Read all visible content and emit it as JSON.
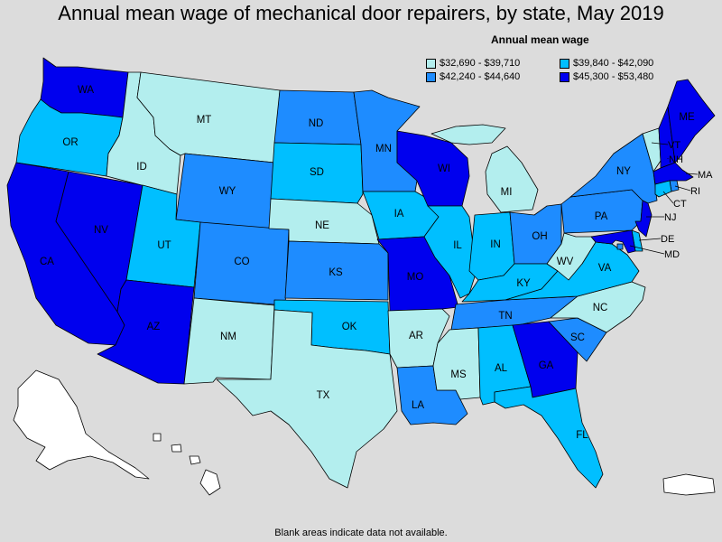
{
  "title": "Annual mean wage of mechanical door repairers, by state, May 2019",
  "legend": {
    "title": "Annual mean wage",
    "items": [
      {
        "label": "$32,690 - $39,710",
        "color": "#b3eeee"
      },
      {
        "label": "$39,840 - $42,090",
        "color": "#00bfff"
      },
      {
        "label": "$42,240 - $44,640",
        "color": "#1e8cff"
      },
      {
        "label": "$45,300 - $53,480",
        "color": "#0000ee"
      }
    ]
  },
  "footnote": "Blank areas indicate data not available.",
  "colors": {
    "tier1": "#b3eeee",
    "tier2": "#00bfff",
    "tier3": "#1e8cff",
    "tier4": "#0000ee",
    "no_data": "#ffffff",
    "background": "#dcdcdc"
  },
  "states": [
    {
      "abbr": "WA",
      "tier": 4
    },
    {
      "abbr": "OR",
      "tier": 2
    },
    {
      "abbr": "CA",
      "tier": 4
    },
    {
      "abbr": "NV",
      "tier": 4
    },
    {
      "abbr": "ID",
      "tier": 1
    },
    {
      "abbr": "MT",
      "tier": 1
    },
    {
      "abbr": "WY",
      "tier": 3
    },
    {
      "abbr": "UT",
      "tier": 2
    },
    {
      "abbr": "AZ",
      "tier": 4
    },
    {
      "abbr": "CO",
      "tier": 3
    },
    {
      "abbr": "NM",
      "tier": 1
    },
    {
      "abbr": "ND",
      "tier": 3
    },
    {
      "abbr": "SD",
      "tier": 2
    },
    {
      "abbr": "NE",
      "tier": 1
    },
    {
      "abbr": "KS",
      "tier": 3
    },
    {
      "abbr": "OK",
      "tier": 2
    },
    {
      "abbr": "TX",
      "tier": 1
    },
    {
      "abbr": "MN",
      "tier": 3
    },
    {
      "abbr": "IA",
      "tier": 2
    },
    {
      "abbr": "MO",
      "tier": 4
    },
    {
      "abbr": "AR",
      "tier": 1
    },
    {
      "abbr": "LA",
      "tier": 3
    },
    {
      "abbr": "WI",
      "tier": 4
    },
    {
      "abbr": "IL",
      "tier": 2
    },
    {
      "abbr": "MI",
      "tier": 1
    },
    {
      "abbr": "IN",
      "tier": 2
    },
    {
      "abbr": "OH",
      "tier": 3
    },
    {
      "abbr": "KY",
      "tier": 2
    },
    {
      "abbr": "TN",
      "tier": 3
    },
    {
      "abbr": "MS",
      "tier": 1
    },
    {
      "abbr": "AL",
      "tier": 2
    },
    {
      "abbr": "GA",
      "tier": 4
    },
    {
      "abbr": "FL",
      "tier": 2
    },
    {
      "abbr": "SC",
      "tier": 3
    },
    {
      "abbr": "NC",
      "tier": 1
    },
    {
      "abbr": "VA",
      "tier": 2
    },
    {
      "abbr": "WV",
      "tier": 1
    },
    {
      "abbr": "PA",
      "tier": 3
    },
    {
      "abbr": "NY",
      "tier": 3
    },
    {
      "abbr": "VT",
      "tier": 1
    },
    {
      "abbr": "NH",
      "tier": 4
    },
    {
      "abbr": "ME",
      "tier": 4
    },
    {
      "abbr": "MA",
      "tier": 4
    },
    {
      "abbr": "RI",
      "tier": 3
    },
    {
      "abbr": "CT",
      "tier": 2
    },
    {
      "abbr": "NJ",
      "tier": 4
    },
    {
      "abbr": "DE",
      "tier": 2
    },
    {
      "abbr": "MD",
      "tier": 4
    },
    {
      "abbr": "DC",
      "tier": 3
    },
    {
      "abbr": "AK",
      "tier": 0
    },
    {
      "abbr": "HI",
      "tier": 0
    },
    {
      "abbr": "PR",
      "tier": 0
    }
  ]
}
